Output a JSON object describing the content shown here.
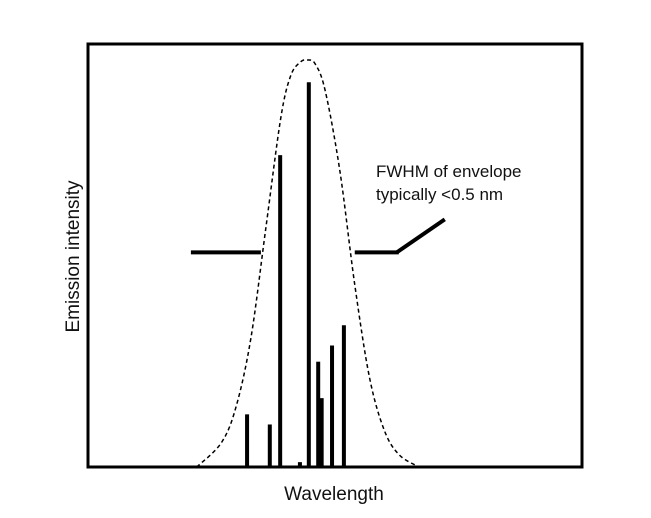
{
  "chart_data": {
    "type": "bar",
    "title": "",
    "xlabel": "Wavelength",
    "ylabel": "Emission intensity",
    "xlim": [
      0,
      100
    ],
    "ylim": [
      0,
      100
    ],
    "grid": false,
    "x_ticks": false,
    "y_ticks": false,
    "series": [
      {
        "type": "bar",
        "x": [
          32.2,
          36.8,
          38.9,
          42.9,
          44.7,
          46.6,
          47.3,
          49.4,
          51.8
        ],
        "values": [
          13,
          10.5,
          77,
          1.2,
          95,
          26,
          17,
          30,
          35
        ]
      },
      {
        "type": "line",
        "style": "dashed",
        "x": [
          22,
          27,
          30,
          33,
          36,
          39,
          41,
          43,
          44.5,
          46,
          48,
          51,
          54,
          57,
          60,
          63,
          67
        ],
        "values": [
          0,
          6,
          15,
          32,
          59,
          86,
          96.5,
          100,
          100.5,
          99.5,
          93,
          73,
          45,
          22,
          9,
          3,
          0
        ]
      }
    ],
    "annotations": [
      {
        "text": [
          "FWHM of envelope",
          "typically <0.5 nm"
        ],
        "fwhm_level": 53,
        "fwhm_x_range": [
          35,
          54
        ]
      }
    ]
  }
}
